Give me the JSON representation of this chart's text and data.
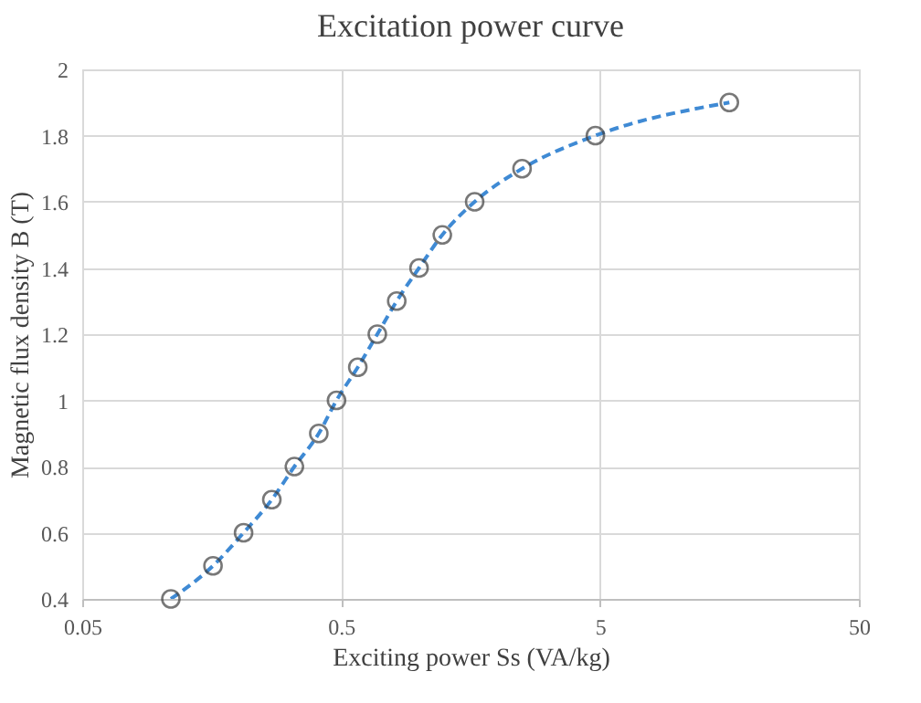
{
  "chart_data": {
    "type": "line",
    "title": "Excitation power curve",
    "xlabel": "Exciting power Ss (VA/kg)",
    "ylabel": "Magnetic flux density B (T)",
    "x": [
      0.11,
      0.16,
      0.21,
      0.27,
      0.33,
      0.41,
      0.48,
      0.58,
      0.69,
      0.82,
      1.0,
      1.23,
      1.64,
      2.5,
      4.8,
      15.8
    ],
    "series": [
      {
        "color": "#3f8ad4",
        "values": [
          0.4,
          0.5,
          0.6,
          0.7,
          0.8,
          0.9,
          1.0,
          1.1,
          1.2,
          1.3,
          1.4,
          1.5,
          1.6,
          1.7,
          1.8,
          1.9
        ]
      }
    ],
    "log": "x",
    "xlim": [
      0.05,
      50
    ],
    "xticks": [
      0.05,
      0.5,
      5,
      50
    ],
    "ylim": [
      0.4,
      2
    ],
    "yticks": [
      0.4,
      0.6,
      0.8,
      1,
      1.2,
      1.4,
      1.6,
      1.8,
      2
    ],
    "grid": true,
    "marker": "circle",
    "line_style": "dashed",
    "legend": false
  }
}
